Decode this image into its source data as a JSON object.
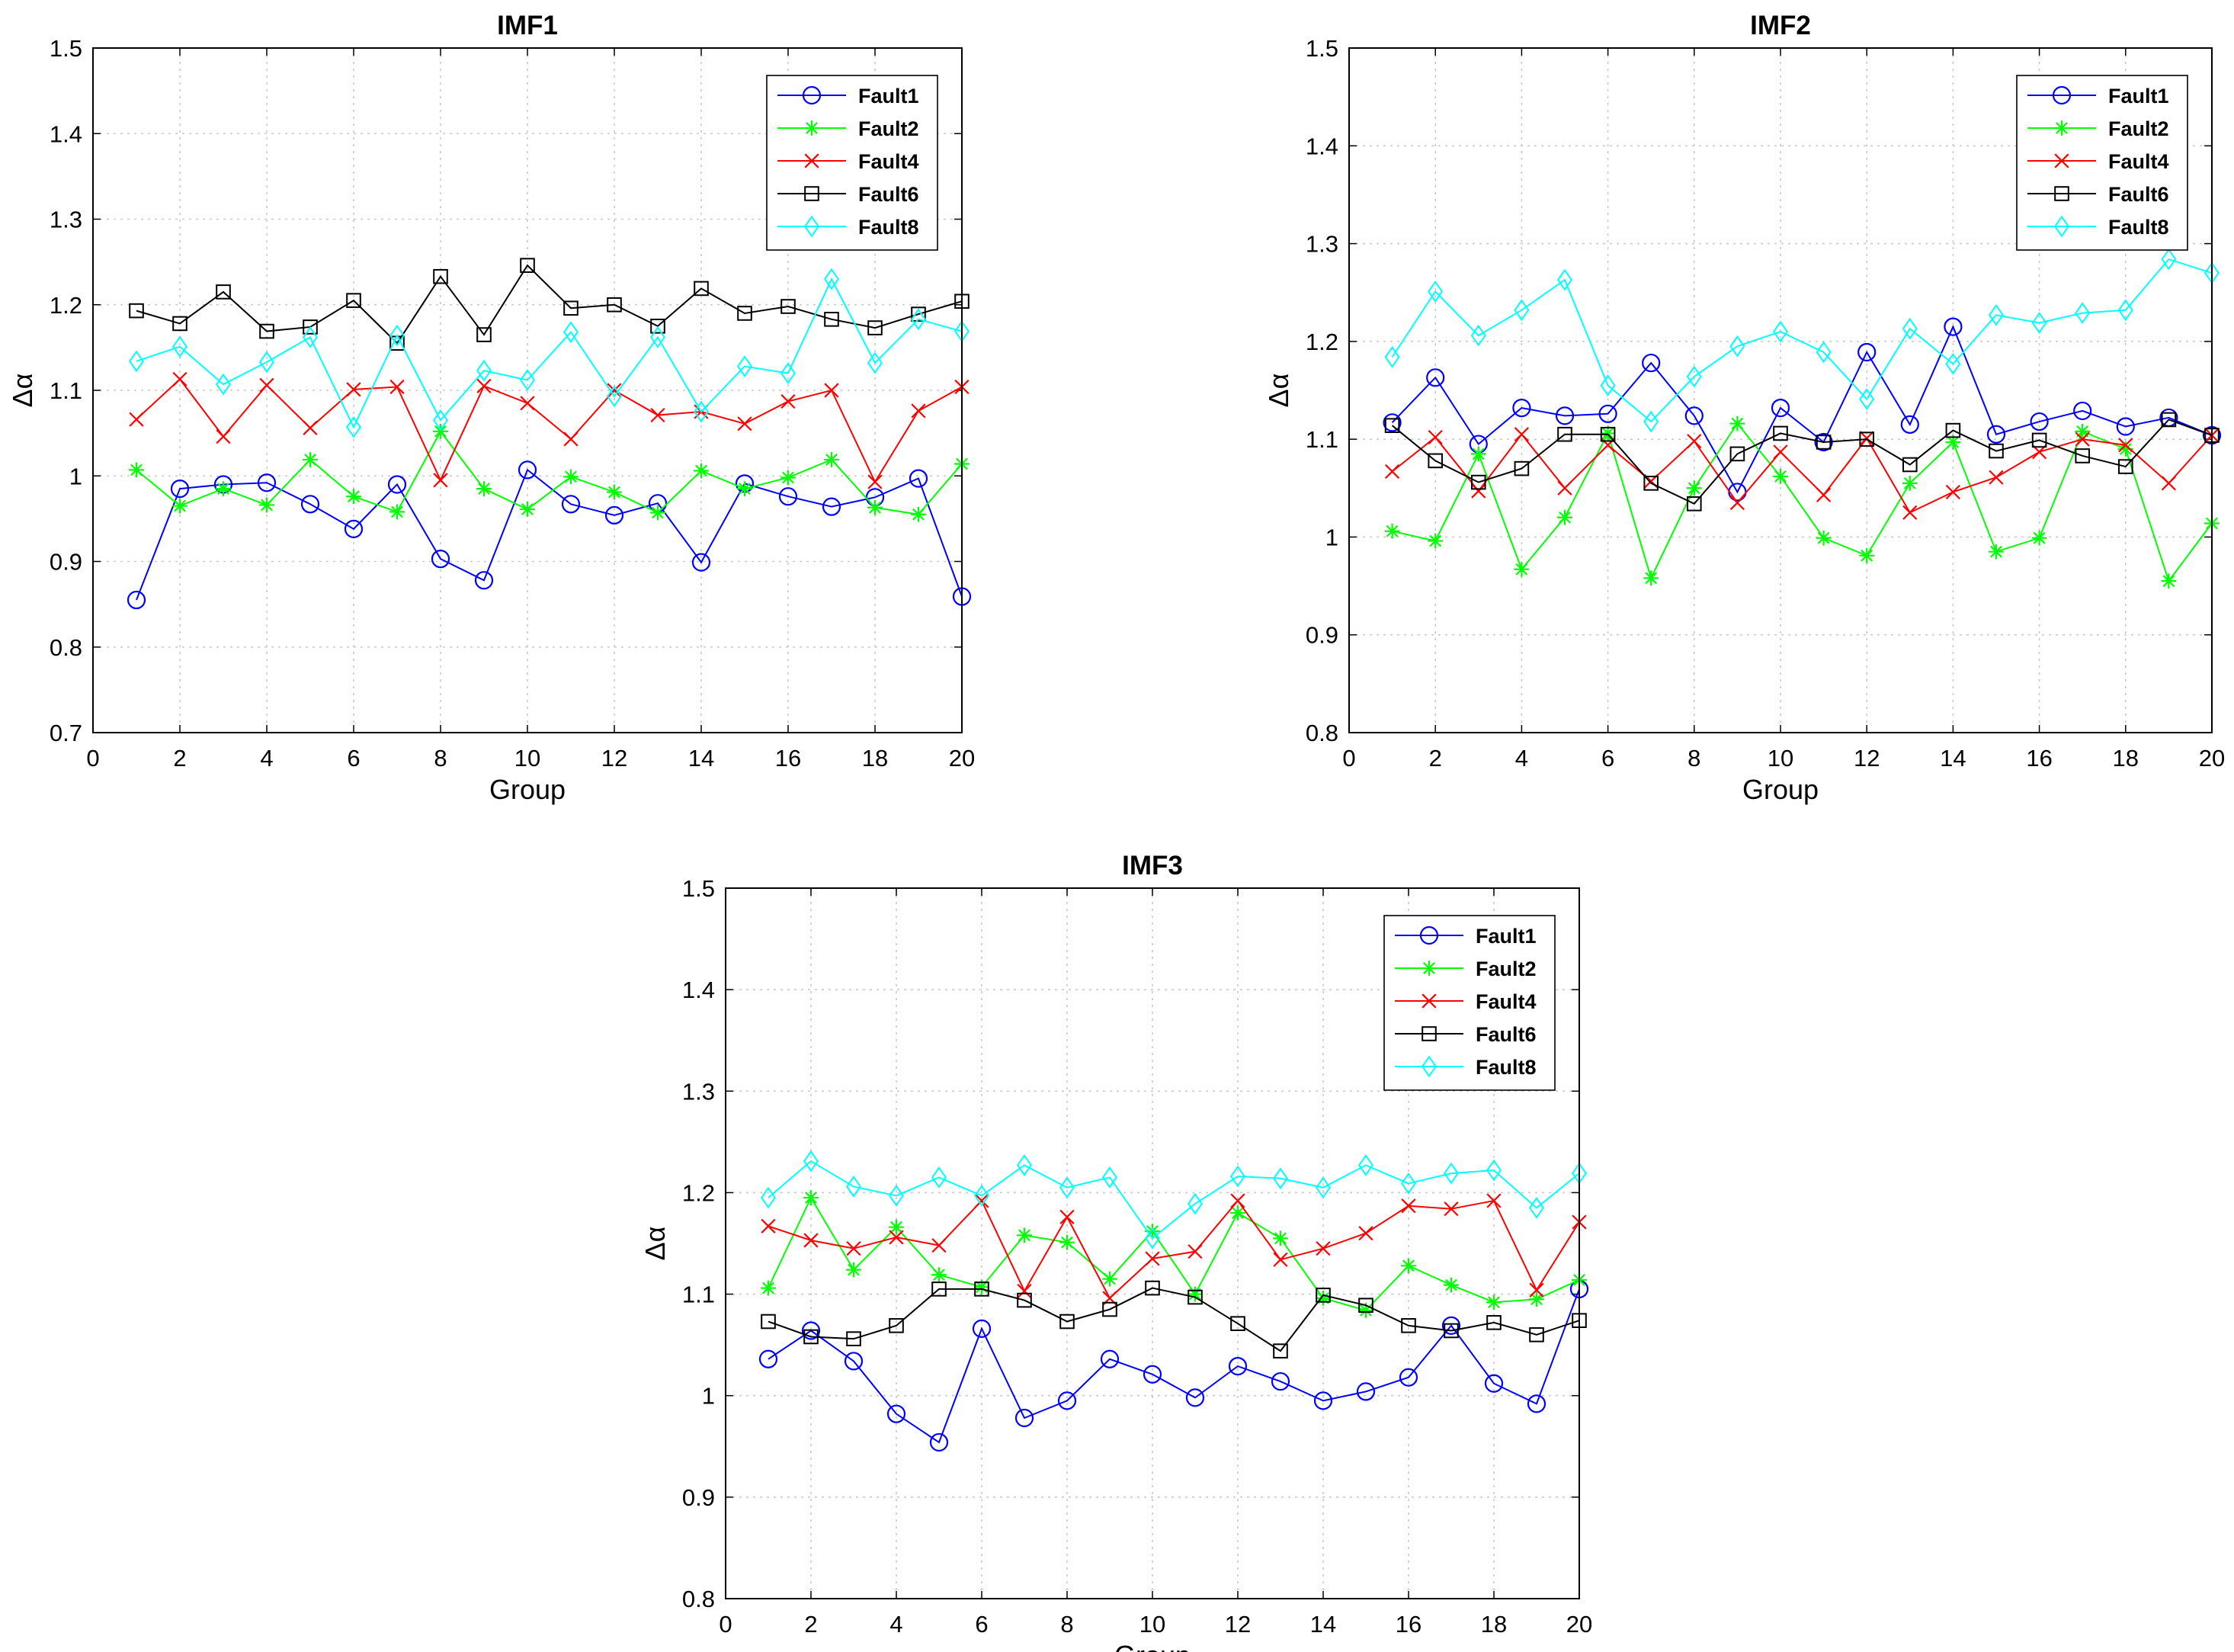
{
  "figure": {
    "series_colors": {
      "Fault1": "#0000ff",
      "Fault2": "#00ff00",
      "Fault4": "#ff0000",
      "Fault6": "#000000",
      "Fault8": "#00ffff"
    }
  },
  "chart_data": [
    {
      "type": "line",
      "title": "IMF1",
      "xlabel": "Group",
      "ylabel": "Δα",
      "xlim": [
        0,
        20
      ],
      "ylim": [
        0.7,
        1.5
      ],
      "xticks": [
        0,
        2,
        4,
        6,
        8,
        10,
        12,
        14,
        16,
        18,
        20
      ],
      "yticks": [
        0.7,
        0.8,
        0.9,
        1,
        1.1,
        1.2,
        1.3,
        1.4,
        1.5
      ],
      "grid": true,
      "legend_position": "top-right",
      "x": [
        1,
        2,
        3,
        4,
        5,
        6,
        7,
        8,
        9,
        10,
        11,
        12,
        13,
        14,
        15,
        16,
        17,
        18,
        19,
        20
      ],
      "series": [
        {
          "name": "Fault1",
          "color": "#0000ff",
          "marker": "circle",
          "values": [
            0.855,
            0.985,
            0.99,
            0.992,
            0.967,
            0.938,
            0.99,
            0.903,
            0.878,
            1.007,
            0.967,
            0.954,
            0.968,
            0.899,
            0.991,
            0.976,
            0.964,
            0.975,
            0.997,
            0.859
          ]
        },
        {
          "name": "Fault2",
          "color": "#00ff00",
          "marker": "star",
          "values": [
            1.007,
            0.965,
            0.985,
            0.966,
            1.019,
            0.976,
            0.958,
            1.052,
            0.985,
            0.961,
            0.999,
            0.981,
            0.957,
            1.006,
            0.985,
            0.998,
            1.019,
            0.963,
            0.955,
            1.014
          ]
        },
        {
          "name": "Fault4",
          "color": "#ff0000",
          "marker": "x",
          "values": [
            1.066,
            1.113,
            1.046,
            1.106,
            1.056,
            1.101,
            1.104,
            0.995,
            1.105,
            1.085,
            1.043,
            1.1,
            1.071,
            1.075,
            1.061,
            1.087,
            1.1,
            0.993,
            1.076,
            1.104
          ]
        },
        {
          "name": "Fault6",
          "color": "#000000",
          "marker": "square",
          "values": [
            1.193,
            1.178,
            1.215,
            1.169,
            1.174,
            1.205,
            1.155,
            1.233,
            1.165,
            1.246,
            1.196,
            1.2,
            1.175,
            1.219,
            1.19,
            1.198,
            1.183,
            1.173,
            1.189,
            1.204
          ]
        },
        {
          "name": "Fault8",
          "color": "#00ffff",
          "marker": "diamond",
          "values": [
            1.134,
            1.151,
            1.107,
            1.133,
            1.162,
            1.057,
            1.164,
            1.065,
            1.123,
            1.112,
            1.168,
            1.093,
            1.162,
            1.075,
            1.128,
            1.12,
            1.23,
            1.132,
            1.183,
            1.169
          ]
        }
      ]
    },
    {
      "type": "line",
      "title": "IMF2",
      "xlabel": "Group",
      "ylabel": "Δα",
      "xlim": [
        0,
        20
      ],
      "ylim": [
        0.8,
        1.5
      ],
      "xticks": [
        0,
        2,
        4,
        6,
        8,
        10,
        12,
        14,
        16,
        18,
        20
      ],
      "yticks": [
        0.8,
        0.9,
        1,
        1.1,
        1.2,
        1.3,
        1.4,
        1.5
      ],
      "grid": true,
      "legend_position": "top-right",
      "x": [
        1,
        2,
        3,
        4,
        5,
        6,
        7,
        8,
        9,
        10,
        11,
        12,
        13,
        14,
        15,
        16,
        17,
        18,
        19,
        20
      ],
      "series": [
        {
          "name": "Fault1",
          "color": "#0000ff",
          "marker": "circle",
          "values": [
            1.117,
            1.163,
            1.095,
            1.132,
            1.124,
            1.126,
            1.178,
            1.124,
            1.046,
            1.132,
            1.097,
            1.189,
            1.115,
            1.215,
            1.105,
            1.118,
            1.129,
            1.113,
            1.122,
            1.104
          ]
        },
        {
          "name": "Fault2",
          "color": "#00ff00",
          "marker": "star",
          "values": [
            1.006,
            0.996,
            1.085,
            0.967,
            1.02,
            1.106,
            0.958,
            1.05,
            1.116,
            1.062,
            0.999,
            0.981,
            1.055,
            1.097,
            0.985,
            0.999,
            1.108,
            1.09,
            0.955,
            1.014
          ]
        },
        {
          "name": "Fault4",
          "color": "#ff0000",
          "marker": "x",
          "values": [
            1.067,
            1.102,
            1.047,
            1.105,
            1.05,
            1.094,
            1.057,
            1.098,
            1.035,
            1.087,
            1.043,
            1.101,
            1.025,
            1.046,
            1.061,
            1.087,
            1.1,
            1.094,
            1.055,
            1.104
          ]
        },
        {
          "name": "Fault6",
          "color": "#000000",
          "marker": "square",
          "values": [
            1.114,
            1.078,
            1.056,
            1.07,
            1.105,
            1.105,
            1.055,
            1.034,
            1.085,
            1.106,
            1.097,
            1.1,
            1.074,
            1.109,
            1.088,
            1.099,
            1.083,
            1.072,
            1.12,
            1.104
          ]
        },
        {
          "name": "Fault8",
          "color": "#00ffff",
          "marker": "diamond",
          "values": [
            1.184,
            1.251,
            1.206,
            1.232,
            1.263,
            1.155,
            1.118,
            1.164,
            1.195,
            1.21,
            1.189,
            1.141,
            1.213,
            1.177,
            1.227,
            1.219,
            1.229,
            1.232,
            1.284,
            1.27
          ]
        }
      ]
    },
    {
      "type": "line",
      "title": "IMF3",
      "xlabel": "Group",
      "ylabel": "Δα",
      "xlim": [
        0,
        20
      ],
      "ylim": [
        0.8,
        1.5
      ],
      "xticks": [
        0,
        2,
        4,
        6,
        8,
        10,
        12,
        14,
        16,
        18,
        20
      ],
      "yticks": [
        0.8,
        0.9,
        1,
        1.1,
        1.2,
        1.3,
        1.4,
        1.5
      ],
      "grid": true,
      "legend_position": "top-right",
      "x": [
        1,
        2,
        3,
        4,
        5,
        6,
        7,
        8,
        9,
        10,
        11,
        12,
        13,
        14,
        15,
        16,
        17,
        18,
        19,
        20
      ],
      "series": [
        {
          "name": "Fault1",
          "color": "#0000ff",
          "marker": "circle",
          "values": [
            1.036,
            1.064,
            1.034,
            0.982,
            0.954,
            1.066,
            0.978,
            0.995,
            1.036,
            1.021,
            0.998,
            1.029,
            1.014,
            0.995,
            1.004,
            1.018,
            1.069,
            1.012,
            0.992,
            1.105
          ]
        },
        {
          "name": "Fault2",
          "color": "#00ff00",
          "marker": "star",
          "values": [
            1.106,
            1.195,
            1.124,
            1.166,
            1.119,
            1.107,
            1.158,
            1.151,
            1.115,
            1.162,
            1.1,
            1.18,
            1.155,
            1.096,
            1.084,
            1.128,
            1.109,
            1.092,
            1.095,
            1.114
          ]
        },
        {
          "name": "Fault4",
          "color": "#ff0000",
          "marker": "x",
          "values": [
            1.167,
            1.153,
            1.145,
            1.156,
            1.148,
            1.192,
            1.103,
            1.176,
            1.096,
            1.135,
            1.142,
            1.192,
            1.134,
            1.145,
            1.16,
            1.187,
            1.184,
            1.192,
            1.104,
            1.171
          ]
        },
        {
          "name": "Fault6",
          "color": "#000000",
          "marker": "square",
          "values": [
            1.073,
            1.058,
            1.056,
            1.069,
            1.105,
            1.105,
            1.094,
            1.073,
            1.085,
            1.106,
            1.097,
            1.071,
            1.044,
            1.099,
            1.089,
            1.069,
            1.064,
            1.072,
            1.06,
            1.074
          ]
        },
        {
          "name": "Fault8",
          "color": "#00ffff",
          "marker": "diamond",
          "values": [
            1.195,
            1.231,
            1.206,
            1.197,
            1.215,
            1.197,
            1.227,
            1.205,
            1.215,
            1.155,
            1.189,
            1.216,
            1.214,
            1.205,
            1.227,
            1.209,
            1.219,
            1.222,
            1.185,
            1.219
          ]
        }
      ]
    }
  ]
}
